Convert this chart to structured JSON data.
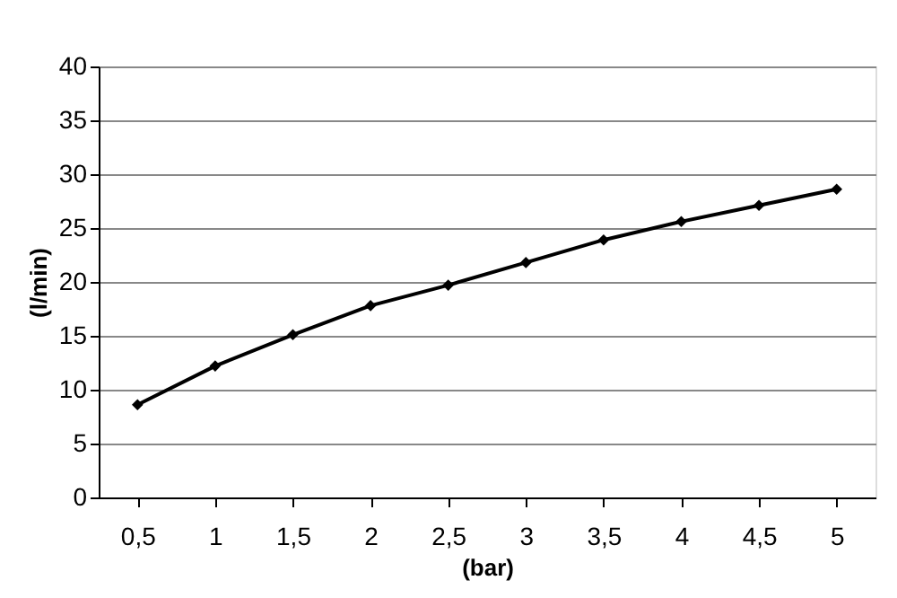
{
  "chart_data": {
    "type": "line",
    "xlabel": "(bar)",
    "ylabel": "(l/min)",
    "categories": [
      "0,5",
      "1",
      "1,5",
      "2",
      "2,5",
      "3",
      "3,5",
      "4",
      "4,5",
      "5"
    ],
    "series": [
      {
        "color": "#000000",
        "values": [
          8.6,
          12.2,
          15.1,
          17.8,
          19.7,
          21.8,
          23.9,
          25.6,
          27.1,
          28.6
        ]
      }
    ],
    "ylim": [
      0,
      40
    ],
    "yticks": [
      0,
      5,
      10,
      15,
      20,
      25,
      30,
      35,
      40
    ],
    "grid": "y",
    "marker": "diamond",
    "line_style": "solid"
  }
}
